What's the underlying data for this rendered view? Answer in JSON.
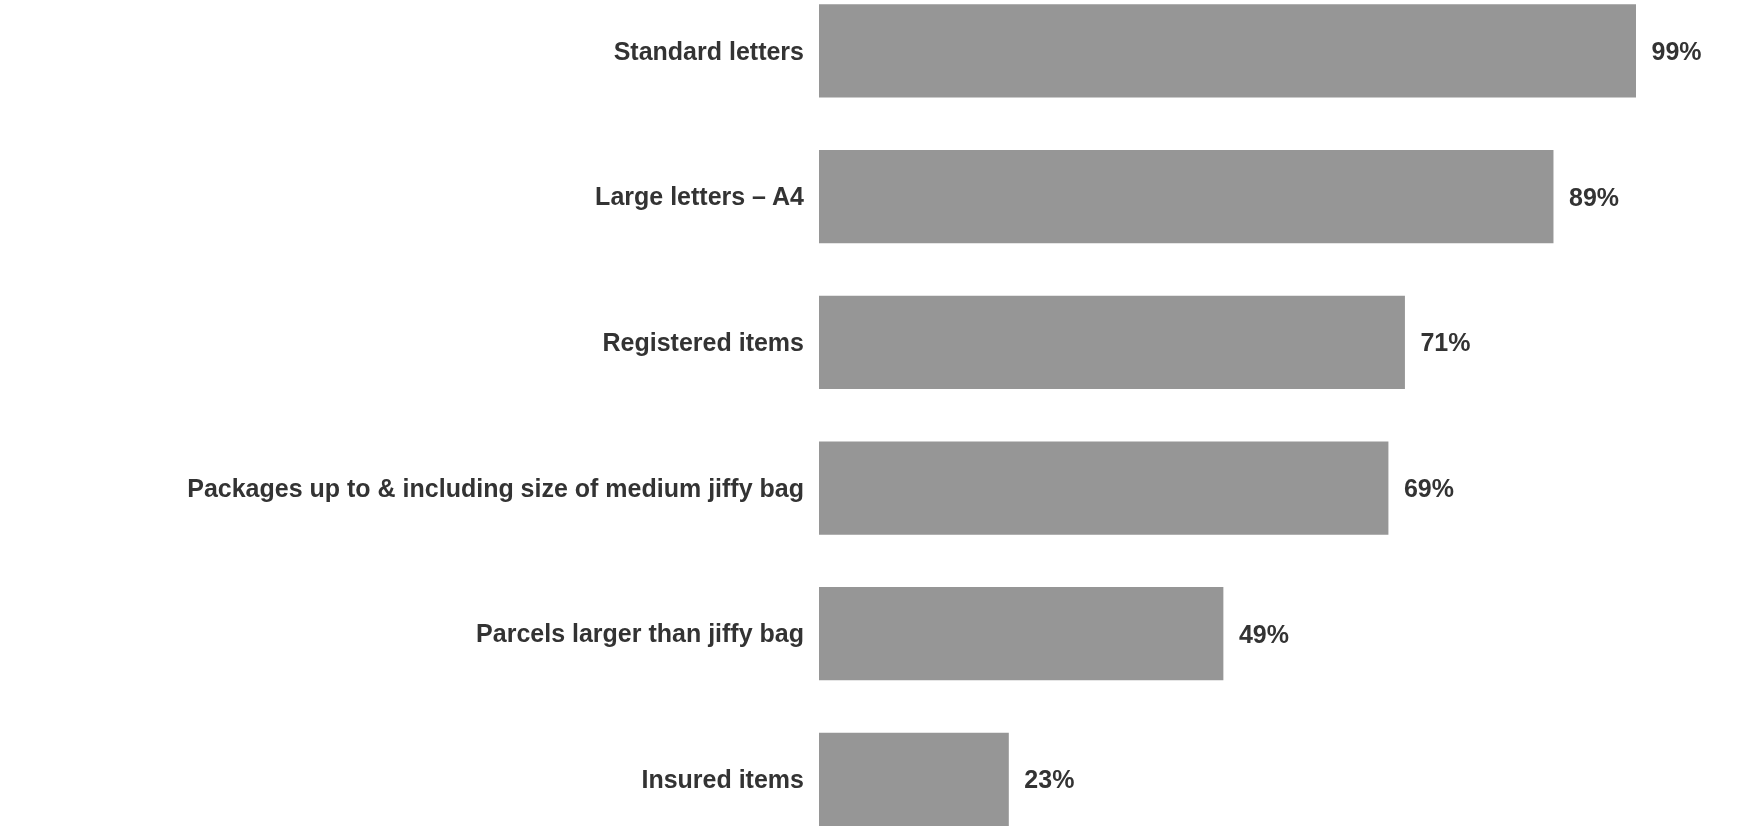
{
  "chart_data": {
    "type": "bar",
    "orientation": "horizontal",
    "categories": [
      "Standard letters",
      "Large letters – A4",
      "Registered items",
      "Packages up to & including size of medium jiffy bag",
      "Parcels larger than jiffy bag",
      "Insured items"
    ],
    "values": [
      99,
      89,
      71,
      69,
      49,
      23
    ],
    "value_labels": [
      "99%",
      "89%",
      "71%",
      "69%",
      "49%",
      "23%"
    ],
    "color": "#969696",
    "tick_labels": "y",
    "grid": false
  }
}
